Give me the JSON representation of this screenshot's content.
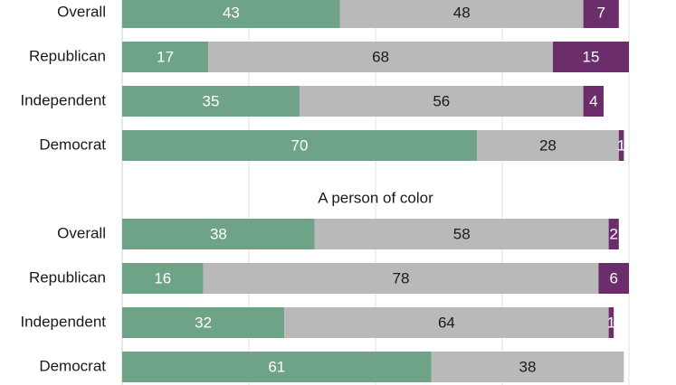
{
  "chart_data": {
    "type": "bar",
    "orientation": "horizontal",
    "stacked": true,
    "xlim": [
      0,
      100
    ],
    "grid": true,
    "colors": [
      "#6fa387",
      "#b9b9b9",
      "#6b2d6b"
    ],
    "value_text_colors": [
      "#ffffff",
      "#1a1a1a",
      "#ffffff"
    ],
    "groups": [
      {
        "title": "",
        "categories": [
          "Overall",
          "Republican",
          "Independent",
          "Democrat"
        ],
        "series": [
          {
            "values": [
              43,
              17,
              35,
              70
            ]
          },
          {
            "values": [
              48,
              68,
              56,
              28
            ]
          },
          {
            "values": [
              7,
              15,
              4,
              1
            ]
          }
        ]
      },
      {
        "title": "A person of color",
        "categories": [
          "Overall",
          "Republican",
          "Independent",
          "Democrat"
        ],
        "series": [
          {
            "values": [
              38,
              16,
              32,
              61
            ]
          },
          {
            "values": [
              58,
              78,
              64,
              38
            ]
          },
          {
            "values": [
              2,
              6,
              1,
              null
            ]
          }
        ]
      }
    ]
  }
}
